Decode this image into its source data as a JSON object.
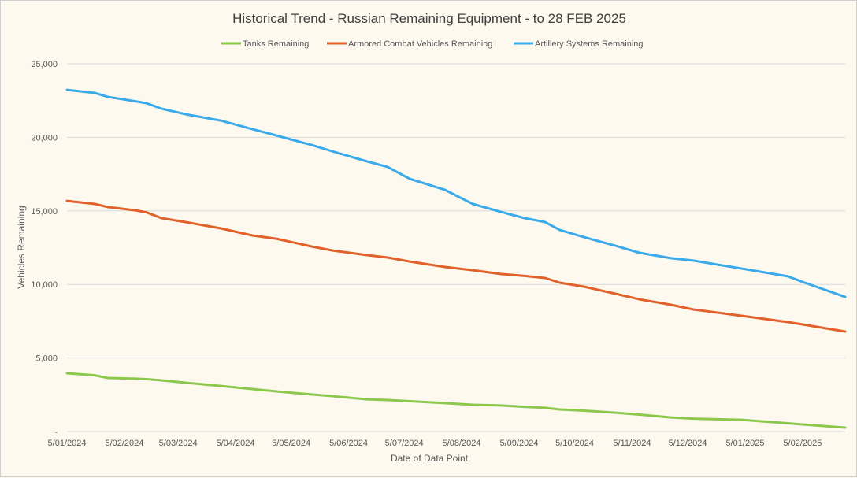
{
  "chart_data": {
    "type": "line",
    "title": "Historical Trend - Russian Remaining Equipment - to 28 FEB 2025",
    "xlabel": "Date of Data Point",
    "ylabel": "Vehicles Remaining",
    "ylim": [
      0,
      25000
    ],
    "yticks": [
      0,
      5000,
      10000,
      15000,
      20000,
      25000
    ],
    "ytick_labels": [
      "-",
      "5,000",
      "10,000",
      "15,000",
      "20,000",
      "25,000"
    ],
    "xlim": [
      "2024-01-05",
      "2025-02-28"
    ],
    "xtick_labels": [
      "5/01/2024",
      "5/02/2024",
      "5/03/2024",
      "5/04/2024",
      "5/05/2024",
      "5/06/2024",
      "5/07/2024",
      "5/08/2024",
      "5/09/2024",
      "5/10/2024",
      "5/11/2024",
      "5/12/2024",
      "5/01/2025",
      "5/02/2025"
    ],
    "xtick_dates": [
      "2024-01-05",
      "2024-02-05",
      "2024-03-05",
      "2024-04-05",
      "2024-05-05",
      "2024-06-05",
      "2024-07-05",
      "2024-08-05",
      "2024-09-05",
      "2024-10-05",
      "2024-11-05",
      "2024-12-05",
      "2025-01-05",
      "2025-02-05"
    ],
    "grid": true,
    "legend_position": "top",
    "x": [
      "2024-01-05",
      "2024-01-20",
      "2024-01-27",
      "2024-02-11",
      "2024-02-17",
      "2024-02-25",
      "2024-03-09",
      "2024-03-28",
      "2024-04-14",
      "2024-04-27",
      "2024-05-16",
      "2024-05-27",
      "2024-06-15",
      "2024-06-26",
      "2024-07-08",
      "2024-07-27",
      "2024-08-11",
      "2024-08-26",
      "2024-09-08",
      "2024-09-19",
      "2024-09-27",
      "2024-10-10",
      "2024-10-27",
      "2024-11-09",
      "2024-11-26",
      "2024-12-08",
      "2025-01-03",
      "2025-01-28",
      "2025-02-05",
      "2025-02-28"
    ],
    "series": [
      {
        "name": "Tanks Remaining",
        "color": "#8cc84b",
        "values": [
          3960,
          3820,
          3640,
          3590,
          3560,
          3480,
          3320,
          3100,
          2890,
          2730,
          2520,
          2410,
          2190,
          2140,
          2060,
          1930,
          1820,
          1770,
          1680,
          1610,
          1500,
          1420,
          1280,
          1150,
          960,
          880,
          800,
          560,
          480,
          270
        ]
      },
      {
        "name": "Armored Combat Vehicles Remaining",
        "color": "#e0622a",
        "values": [
          15680,
          15470,
          15260,
          15040,
          14900,
          14510,
          14240,
          13810,
          13330,
          13110,
          12580,
          12310,
          11990,
          11830,
          11560,
          11190,
          10970,
          10710,
          10580,
          10440,
          10120,
          9850,
          9370,
          8990,
          8620,
          8300,
          7870,
          7440,
          7280,
          6800
        ]
      },
      {
        "name": "Artillery Systems Remaining",
        "color": "#3aaaea",
        "values": [
          23230,
          23020,
          22750,
          22450,
          22320,
          21950,
          21570,
          21140,
          20560,
          20130,
          19480,
          19060,
          18360,
          17990,
          17180,
          16430,
          15470,
          14940,
          14510,
          14240,
          13700,
          13220,
          12630,
          12150,
          11780,
          11620,
          11080,
          10550,
          10170,
          9150
        ]
      }
    ]
  }
}
